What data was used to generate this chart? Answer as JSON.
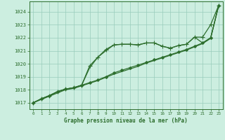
{
  "background_color": "#cceee0",
  "grid_color": "#99ccbb",
  "line_color": "#2d6e2d",
  "title": "Graphe pression niveau de la mer (hPa)",
  "xlim": [
    -0.5,
    23.5
  ],
  "ylim": [
    1016.5,
    1024.8
  ],
  "yticks": [
    1017,
    1018,
    1019,
    1020,
    1021,
    1022,
    1023,
    1024
  ],
  "xticks": [
    0,
    1,
    2,
    3,
    4,
    5,
    6,
    7,
    8,
    9,
    10,
    11,
    12,
    13,
    14,
    15,
    16,
    17,
    18,
    19,
    20,
    21,
    22,
    23
  ],
  "series": [
    {
      "x": [
        0,
        1,
        2,
        3,
        4,
        5,
        6,
        7,
        8,
        9,
        10,
        11,
        12,
        13,
        14,
        15,
        16,
        17,
        18,
        19,
        20,
        21,
        22,
        23
      ],
      "y": [
        1017.0,
        1017.3,
        1017.55,
        1017.85,
        1018.05,
        1018.15,
        1018.35,
        1019.7,
        1020.5,
        1021.0,
        1021.45,
        1021.5,
        1021.5,
        1021.45,
        1021.6,
        1021.6,
        1021.35,
        1021.2,
        1021.4,
        1021.5,
        1022.05,
        1021.6,
        1022.0,
        1024.5
      ],
      "marker": null,
      "markersize": 0,
      "linewidth": 0.9
    },
    {
      "x": [
        0,
        1,
        2,
        3,
        4,
        5,
        6,
        7,
        8,
        9,
        10,
        11,
        12,
        13,
        14,
        15,
        16,
        17,
        18,
        19,
        20,
        21,
        22,
        23
      ],
      "y": [
        1017.0,
        1017.3,
        1017.55,
        1017.85,
        1018.05,
        1018.15,
        1018.35,
        1018.55,
        1018.75,
        1019.0,
        1019.3,
        1019.5,
        1019.7,
        1019.9,
        1020.1,
        1020.3,
        1020.5,
        1020.7,
        1020.9,
        1021.1,
        1021.35,
        1021.6,
        1022.0,
        1024.5
      ],
      "marker": "D",
      "markersize": 2.0,
      "linewidth": 0.9
    },
    {
      "x": [
        0,
        1,
        2,
        3,
        4,
        5,
        6,
        7,
        8,
        9,
        10,
        11,
        12,
        13,
        14,
        15,
        16,
        17,
        18,
        19,
        20,
        21,
        22,
        23
      ],
      "y": [
        1017.0,
        1017.25,
        1017.5,
        1017.75,
        1018.0,
        1018.1,
        1018.3,
        1018.5,
        1018.7,
        1018.95,
        1019.2,
        1019.4,
        1019.6,
        1019.8,
        1020.05,
        1020.25,
        1020.45,
        1020.65,
        1020.85,
        1021.05,
        1021.3,
        1021.55,
        1021.95,
        1024.5
      ],
      "marker": null,
      "markersize": 0,
      "linewidth": 0.9
    },
    {
      "x": [
        0,
        1,
        2,
        3,
        4,
        5,
        6,
        7,
        8,
        9,
        10,
        11,
        12,
        13,
        14,
        15,
        16,
        17,
        18,
        19,
        20,
        21,
        22,
        23
      ],
      "y": [
        1017.0,
        1017.3,
        1017.55,
        1017.85,
        1018.05,
        1018.15,
        1018.35,
        1019.85,
        1020.5,
        1021.1,
        1021.45,
        1021.5,
        1021.5,
        1021.45,
        1021.6,
        1021.6,
        1021.35,
        1021.2,
        1021.4,
        1021.5,
        1022.05,
        1022.05,
        1023.0,
        1024.5
      ],
      "marker": "+",
      "markersize": 4.0,
      "linewidth": 0.9
    }
  ]
}
